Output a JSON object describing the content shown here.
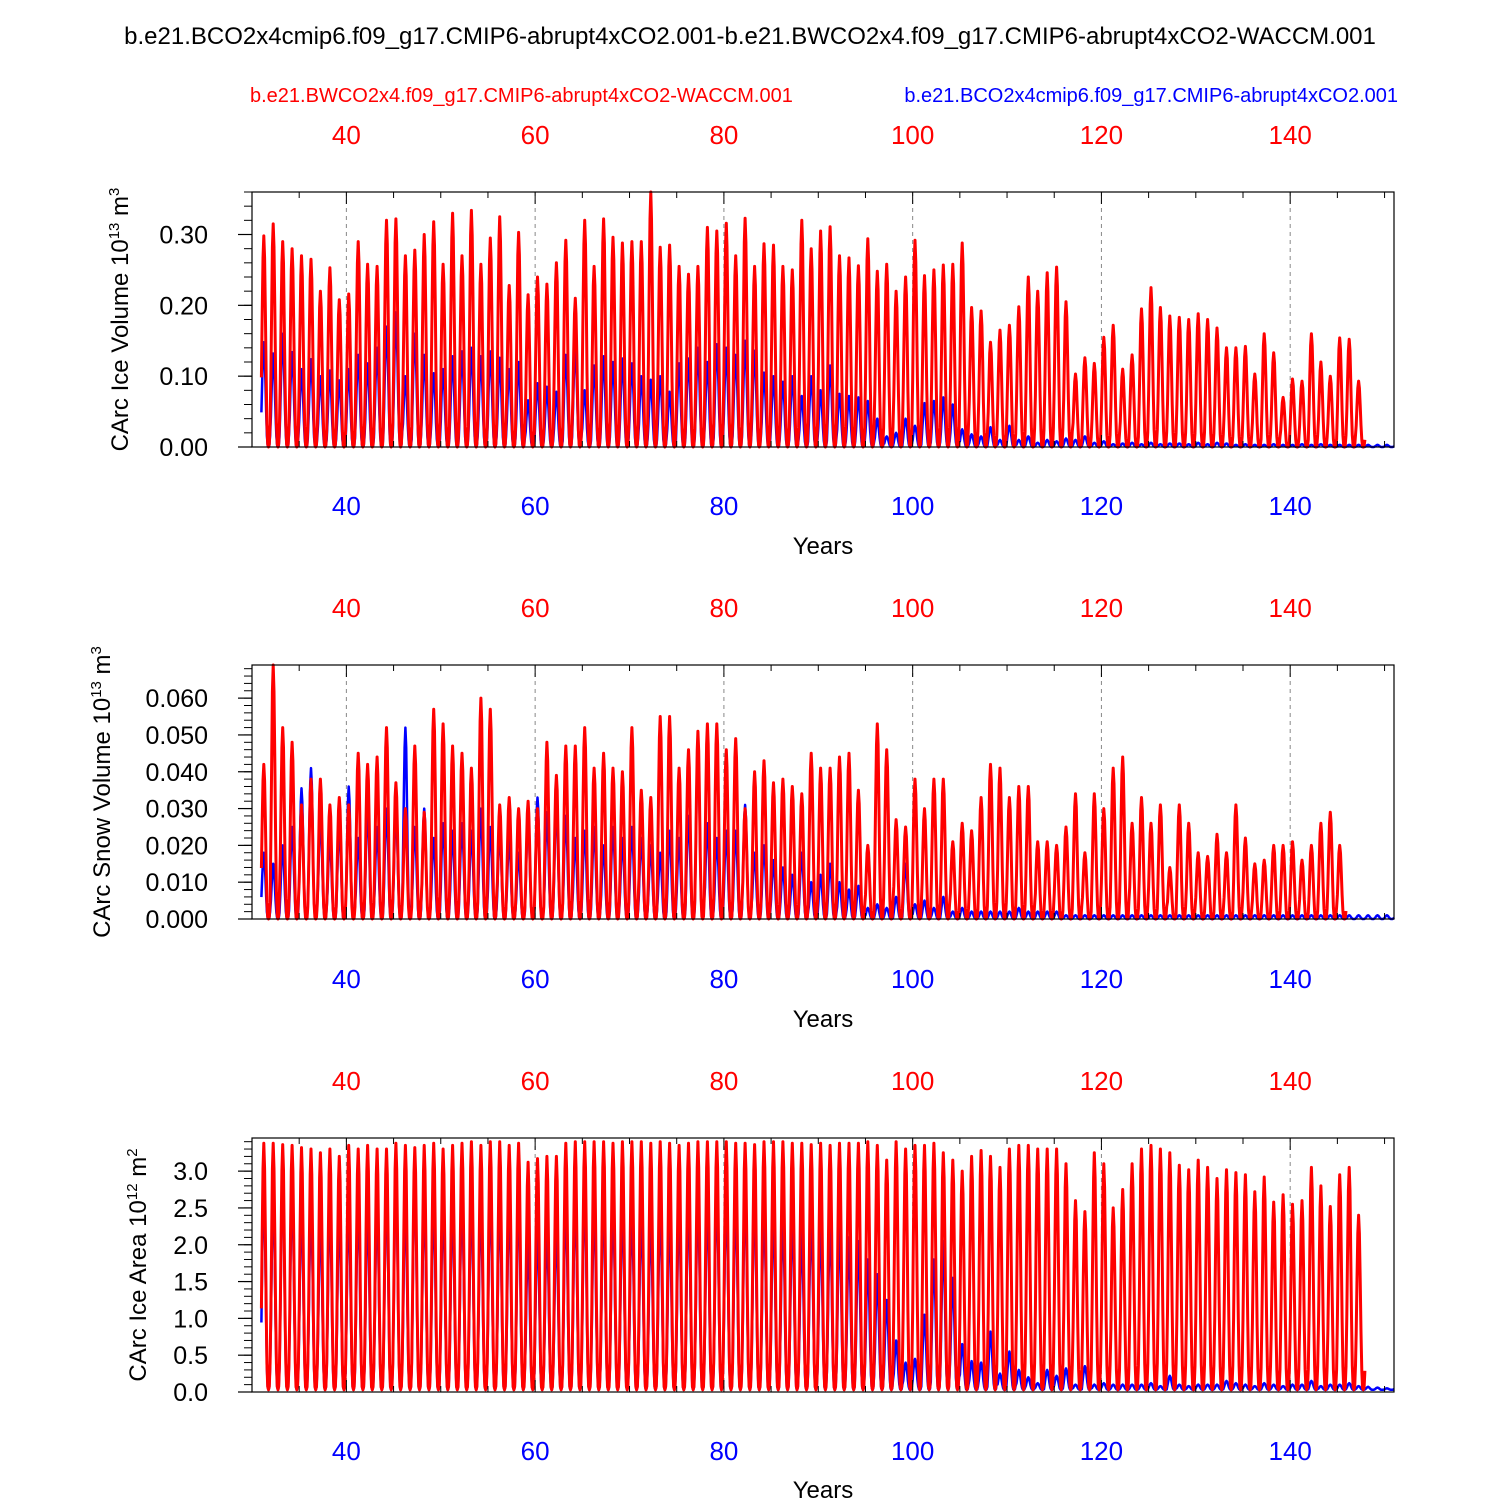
{
  "figure": {
    "title": "b.e21.BCO2x4cmip6.f09_g17.CMIP6-abrupt4xCO2.001-b.e21.BWCO2x4.f09_g17.CMIP6-abrupt4xCO2-WACCM.001",
    "series_labels": {
      "red": "b.e21.BWCO2x4.f09_g17.CMIP6-abrupt4xCO2-WACCM.001",
      "blue": "b.e21.BCO2x4cmip6.f09_g17.CMIP6-abrupt4xCO2.001"
    },
    "colors": {
      "red": "#ff0000",
      "blue": "#0000ff",
      "axis": "#000000",
      "grid": "#888888"
    }
  },
  "chart_data": [
    {
      "type": "line",
      "ylabel": "CArc Ice Volume 10^13 m^3",
      "ylabel_parts": {
        "base": "CArc Ice Volume 10",
        "exp1": "13",
        "unit": " m",
        "exp2": "3"
      },
      "xlabel": "Years",
      "xlim": [
        30,
        151
      ],
      "ylim": [
        0,
        0.36
      ],
      "xticks": [
        40,
        60,
        80,
        100,
        120,
        140
      ],
      "xtick_labels": [
        "40",
        "60",
        "80",
        "100",
        "120",
        "140"
      ],
      "yticks": [
        0.0,
        0.1,
        0.2,
        0.3
      ],
      "ytick_labels": [
        "0.00",
        "0.10",
        "0.20",
        "0.30"
      ],
      "grid": "vertical dashed at major x ticks",
      "series": [
        {
          "name": "b.e21.BWCO2x4.f09_g17.CMIP6-abrupt4xCO2-WACCM.001",
          "color": "#ff0000",
          "start_year": 31,
          "annual_max": [
            0.298,
            0.315,
            0.29,
            0.28,
            0.27,
            0.265,
            0.22,
            0.253,
            0.208,
            0.216,
            0.29,
            0.258,
            0.255,
            0.32,
            0.322,
            0.27,
            0.278,
            0.3,
            0.318,
            0.258,
            0.33,
            0.27,
            0.334,
            0.258,
            0.295,
            0.325,
            0.228,
            0.303,
            0.215,
            0.24,
            0.23,
            0.26,
            0.292,
            0.21,
            0.32,
            0.255,
            0.322,
            0.296,
            0.288,
            0.29,
            0.29,
            0.36,
            0.282,
            0.285,
            0.255,
            0.244,
            0.255,
            0.31,
            0.305,
            0.316,
            0.27,
            0.323,
            0.255,
            0.287,
            0.285,
            0.255,
            0.25,
            0.32,
            0.28,
            0.305,
            0.311,
            0.27,
            0.267,
            0.256,
            0.294,
            0.248,
            0.258,
            0.22,
            0.24,
            0.292,
            0.242,
            0.25,
            0.257,
            0.258,
            0.288,
            0.197,
            0.192,
            0.148,
            0.165,
            0.172,
            0.198,
            0.24,
            0.22,
            0.246,
            0.254,
            0.205,
            0.103,
            0.126,
            0.118,
            0.155,
            0.172,
            0.11,
            0.13,
            0.195,
            0.225,
            0.197,
            0.185,
            0.183,
            0.18,
            0.188,
            0.18,
            0.168,
            0.14,
            0.14,
            0.142,
            0.103,
            0.16,
            0.133,
            0.07,
            0.096,
            0.093,
            0.16,
            0.12,
            0.1,
            0.154,
            0.152,
            0.093
          ],
          "annual_min": 0.0
        },
        {
          "name": "b.e21.BCO2x4cmip6.f09_g17.CMIP6-abrupt4xCO2.001",
          "color": "#0000ff",
          "start_year": 31,
          "annual_max": [
            0.148,
            0.132,
            0.16,
            0.134,
            0.11,
            0.124,
            0.1,
            0.108,
            0.094,
            0.11,
            0.13,
            0.118,
            0.14,
            0.17,
            0.19,
            0.1,
            0.16,
            0.13,
            0.104,
            0.11,
            0.128,
            0.135,
            0.14,
            0.128,
            0.135,
            0.126,
            0.11,
            0.12,
            0.066,
            0.09,
            0.085,
            0.078,
            0.13,
            0.145,
            0.08,
            0.115,
            0.128,
            0.12,
            0.125,
            0.118,
            0.1,
            0.095,
            0.1,
            0.078,
            0.118,
            0.125,
            0.14,
            0.12,
            0.145,
            0.14,
            0.13,
            0.15,
            0.136,
            0.105,
            0.1,
            0.092,
            0.1,
            0.072,
            0.1,
            0.08,
            0.115,
            0.075,
            0.072,
            0.07,
            0.065,
            0.04,
            0.015,
            0.02,
            0.04,
            0.03,
            0.062,
            0.065,
            0.07,
            0.06,
            0.025,
            0.018,
            0.015,
            0.028,
            0.01,
            0.03,
            0.01,
            0.015,
            0.006,
            0.01,
            0.008,
            0.012,
            0.01,
            0.015,
            0.006,
            0.008,
            0.004,
            0.005,
            0.006,
            0.004,
            0.006,
            0.004,
            0.005,
            0.005,
            0.004,
            0.006,
            0.004,
            0.006,
            0.005,
            0.003,
            0.004,
            0.003,
            0.003,
            0.004,
            0.003,
            0.003,
            0.004,
            0.003,
            0.004,
            0.003,
            0.003,
            0.003,
            0.003,
            0.003,
            0.003,
            0.003,
            0.003
          ],
          "annual_min": 0.0
        }
      ]
    },
    {
      "type": "line",
      "ylabel": "CArc Snow Volume 10^13 m^3",
      "ylabel_parts": {
        "base": "CArc Snow Volume 10",
        "exp1": "13",
        "unit": " m",
        "exp2": "3"
      },
      "xlabel": "Years",
      "xlim": [
        30,
        151
      ],
      "ylim": [
        0,
        0.069
      ],
      "xticks": [
        40,
        60,
        80,
        100,
        120,
        140
      ],
      "xtick_labels": [
        "40",
        "60",
        "80",
        "100",
        "120",
        "140"
      ],
      "yticks": [
        0.0,
        0.01,
        0.02,
        0.03,
        0.04,
        0.05,
        0.06
      ],
      "ytick_labels": [
        "0.000",
        "0.010",
        "0.020",
        "0.030",
        "0.040",
        "0.050",
        "0.060"
      ],
      "grid": "vertical dashed at major x ticks",
      "series": [
        {
          "name": "b.e21.BWCO2x4.f09_g17.CMIP6-abrupt4xCO2-WACCM.001",
          "color": "#ff0000",
          "start_year": 31,
          "annual_max": [
            0.042,
            0.069,
            0.052,
            0.048,
            0.031,
            0.038,
            0.038,
            0.031,
            0.033,
            0.031,
            0.045,
            0.042,
            0.044,
            0.052,
            0.037,
            0.03,
            0.047,
            0.029,
            0.057,
            0.053,
            0.047,
            0.045,
            0.041,
            0.06,
            0.057,
            0.031,
            0.033,
            0.03,
            0.032,
            0.03,
            0.048,
            0.039,
            0.047,
            0.047,
            0.052,
            0.041,
            0.045,
            0.041,
            0.04,
            0.052,
            0.035,
            0.033,
            0.055,
            0.055,
            0.041,
            0.046,
            0.051,
            0.053,
            0.053,
            0.046,
            0.049,
            0.03,
            0.04,
            0.043,
            0.037,
            0.038,
            0.036,
            0.034,
            0.045,
            0.041,
            0.041,
            0.044,
            0.045,
            0.035,
            0.02,
            0.053,
            0.046,
            0.027,
            0.025,
            0.038,
            0.03,
            0.038,
            0.038,
            0.021,
            0.026,
            0.024,
            0.033,
            0.042,
            0.041,
            0.033,
            0.036,
            0.036,
            0.021,
            0.021,
            0.02,
            0.025,
            0.034,
            0.018,
            0.034,
            0.03,
            0.041,
            0.044,
            0.026,
            0.033,
            0.026,
            0.031,
            0.014,
            0.031,
            0.026,
            0.018,
            0.017,
            0.023,
            0.018,
            0.031,
            0.022,
            0.015,
            0.016,
            0.02,
            0.02,
            0.021,
            0.016,
            0.02,
            0.026,
            0.029,
            0.02
          ],
          "annual_min": 0.0
        },
        {
          "name": "b.e21.BCO2x4cmip6.f09_g17.CMIP6-abrupt4xCO2.001",
          "color": "#0000ff",
          "start_year": 31,
          "annual_max": [
            0.018,
            0.015,
            0.02,
            0.025,
            0.0355,
            0.041,
            0.028,
            0.022,
            0.025,
            0.036,
            0.022,
            0.03,
            0.025,
            0.03,
            0.03,
            0.052,
            0.025,
            0.03,
            0.022,
            0.026,
            0.024,
            0.026,
            0.024,
            0.03,
            0.025,
            0.024,
            0.022,
            0.018,
            0.028,
            0.033,
            0.029,
            0.031,
            0.028,
            0.022,
            0.024,
            0.025,
            0.02,
            0.025,
            0.022,
            0.025,
            0.022,
            0.02,
            0.018,
            0.024,
            0.022,
            0.028,
            0.049,
            0.026,
            0.022,
            0.024,
            0.024,
            0.031,
            0.018,
            0.02,
            0.016,
            0.014,
            0.012,
            0.018,
            0.01,
            0.012,
            0.015,
            0.01,
            0.008,
            0.009,
            0.003,
            0.004,
            0.003,
            0.006,
            0.015,
            0.004,
            0.005,
            0.003,
            0.006,
            0.002,
            0.003,
            0.002,
            0.002,
            0.002,
            0.002,
            0.002,
            0.003,
            0.002,
            0.002,
            0.002,
            0.002,
            0.001,
            0.001,
            0.001,
            0.001,
            0.001,
            0.001,
            0.001,
            0.001,
            0.001,
            0.001,
            0.001,
            0.001,
            0.001,
            0.001,
            0.001,
            0.001,
            0.001,
            0.001,
            0.001,
            0.001,
            0.001,
            0.001,
            0.001,
            0.001,
            0.001,
            0.001,
            0.001,
            0.001,
            0.001,
            0.001,
            0.001,
            0.001,
            0.001,
            0.001,
            0.001,
            0.001
          ],
          "annual_min": 0.0
        }
      ]
    },
    {
      "type": "line",
      "ylabel": "CArc Ice Area 10^12 m^2",
      "ylabel_parts": {
        "base": "CArc Ice Area 10",
        "exp1": "12",
        "unit": " m",
        "exp2": "2"
      },
      "xlabel": "Years",
      "xlim": [
        30,
        151
      ],
      "ylim": [
        0,
        3.45
      ],
      "xticks": [
        40,
        60,
        80,
        100,
        120,
        140
      ],
      "xtick_labels": [
        "40",
        "60",
        "80",
        "100",
        "120",
        "140"
      ],
      "yticks": [
        0.0,
        0.5,
        1.0,
        1.5,
        2.0,
        2.5,
        3.0
      ],
      "ytick_labels": [
        "0.0",
        "0.5",
        "1.0",
        "1.5",
        "2.0",
        "2.5",
        "3.0"
      ],
      "grid": "vertical dashed at major x ticks",
      "series": [
        {
          "name": "b.e21.BWCO2x4.f09_g17.CMIP6-abrupt4xCO2-WACCM.001",
          "color": "#ff0000",
          "start_year": 31,
          "annual_max": [
            3.38,
            3.38,
            3.36,
            3.35,
            3.32,
            3.3,
            3.25,
            3.3,
            3.2,
            3.35,
            3.3,
            3.35,
            3.3,
            3.3,
            3.38,
            3.35,
            3.32,
            3.35,
            3.38,
            3.3,
            3.35,
            3.38,
            3.4,
            3.35,
            3.4,
            3.4,
            3.35,
            3.38,
            3.12,
            3.17,
            3.2,
            3.2,
            3.38,
            3.4,
            3.4,
            3.4,
            3.4,
            3.38,
            3.4,
            3.4,
            3.4,
            3.38,
            3.4,
            3.38,
            3.35,
            3.38,
            3.4,
            3.4,
            3.4,
            3.4,
            3.38,
            3.38,
            3.36,
            3.4,
            3.4,
            3.4,
            3.38,
            3.38,
            3.36,
            3.38,
            3.35,
            3.38,
            3.38,
            3.38,
            3.4,
            3.35,
            3.15,
            3.4,
            3.3,
            3.35,
            3.35,
            3.38,
            3.25,
            3.15,
            3.0,
            3.2,
            3.28,
            3.2,
            3.05,
            3.3,
            3.35,
            3.35,
            3.3,
            3.3,
            3.3,
            3.1,
            2.6,
            2.45,
            3.25,
            3.1,
            2.5,
            2.75,
            3.1,
            3.3,
            3.35,
            3.3,
            3.25,
            3.08,
            3.02,
            3.15,
            3.05,
            2.9,
            3.02,
            2.98,
            2.95,
            2.72,
            2.92,
            2.58,
            2.68,
            2.55,
            2.6,
            3.05,
            2.8,
            2.52,
            2.95,
            3.05,
            2.4
          ],
          "annual_min": 0.03
        },
        {
          "name": "b.e21.BCO2x4cmip6.f09_g17.CMIP6-abrupt4xCO2.001",
          "color": "#0000ff",
          "start_year": 31,
          "annual_max": [
            2.8,
            2.72,
            3.0,
            2.8,
            2.6,
            2.55,
            2.4,
            2.6,
            2.45,
            2.6,
            2.6,
            2.5,
            2.65,
            2.8,
            3.0,
            2.6,
            2.9,
            2.7,
            2.6,
            2.6,
            2.65,
            2.7,
            2.7,
            2.6,
            2.7,
            2.65,
            2.6,
            2.7,
            2.1,
            2.25,
            2.3,
            2.3,
            2.6,
            2.7,
            2.75,
            2.6,
            2.7,
            2.6,
            2.6,
            2.5,
            2.45,
            2.4,
            2.5,
            2.4,
            2.55,
            2.65,
            2.7,
            2.6,
            2.75,
            2.7,
            2.6,
            2.75,
            2.7,
            2.55,
            2.5,
            2.4,
            2.45,
            2.2,
            2.4,
            2.3,
            2.3,
            2.25,
            2.1,
            2.05,
            1.8,
            1.6,
            1.25,
            0.7,
            0.4,
            0.45,
            1.05,
            1.8,
            2.05,
            1.55,
            0.65,
            0.42,
            0.4,
            0.82,
            0.25,
            0.55,
            0.3,
            0.2,
            0.12,
            0.3,
            0.22,
            0.32,
            0.1,
            0.35,
            0.1,
            0.12,
            0.1,
            0.1,
            0.1,
            0.1,
            0.12,
            0.08,
            0.22,
            0.1,
            0.08,
            0.1,
            0.1,
            0.1,
            0.15,
            0.12,
            0.1,
            0.08,
            0.12,
            0.1,
            0.08,
            0.1,
            0.1,
            0.15,
            0.08,
            0.1,
            0.1,
            0.12,
            0.08,
            0.07,
            0.06,
            0.05,
            0.06
          ],
          "annual_min": 0.03
        }
      ]
    }
  ]
}
